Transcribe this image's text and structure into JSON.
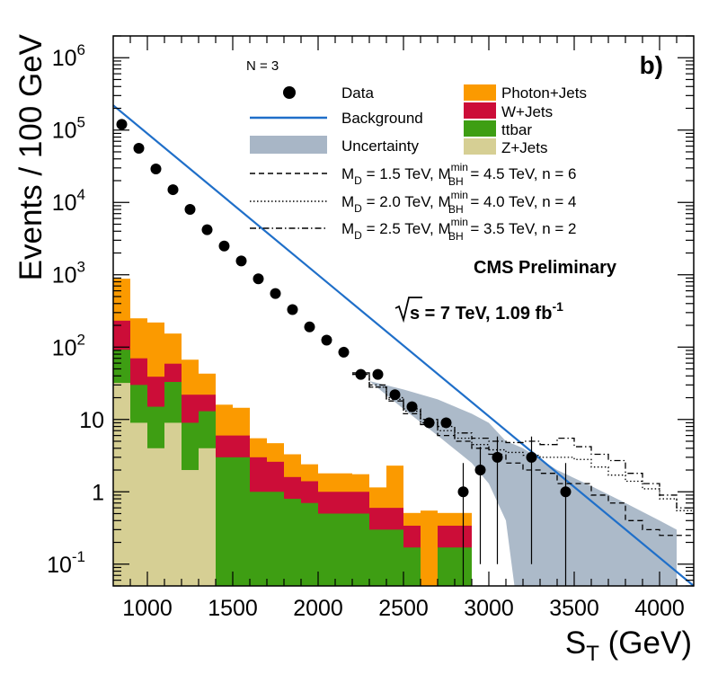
{
  "chart_data": {
    "type": "histogram",
    "title": "",
    "panel_label": "b)",
    "n_label": "N = 3",
    "xlabel": "S_T (GeV)",
    "xlabel_main": "S",
    "xlabel_sub": "T",
    "xlabel_unit": " (GeV)",
    "ylabel": "Events / 100 GeV",
    "xlim": [
      800,
      4200
    ],
    "ylim": [
      0.05,
      2000000
    ],
    "yscale": "log",
    "x_ticks": [
      1000,
      1500,
      2000,
      2500,
      3000,
      3500,
      4000
    ],
    "y_ticks": [
      {
        "value": 0.1,
        "base": "10",
        "exp": "-1"
      },
      {
        "value": 1,
        "base": "1",
        "exp": ""
      },
      {
        "value": 10,
        "base": "10",
        "exp": ""
      },
      {
        "value": 100,
        "base": "10",
        "exp": "2"
      },
      {
        "value": 1000,
        "base": "10",
        "exp": "3"
      },
      {
        "value": 10000,
        "base": "10",
        "exp": "4"
      },
      {
        "value": 100000,
        "base": "10",
        "exp": "5"
      },
      {
        "value": 1000000,
        "base": "10",
        "exp": "6"
      }
    ],
    "bin_edges": [
      800,
      900,
      1000,
      1100,
      1200,
      1300,
      1400,
      1500,
      1600,
      1700,
      1800,
      1900,
      2000,
      2100,
      2200,
      2300,
      2400,
      2500,
      2600,
      2700,
      2800,
      2900,
      3000
    ],
    "stack": [
      {
        "name": "Z+Jets",
        "color": "#d6cf94",
        "values": [
          32,
          9,
          4,
          9,
          2,
          4,
          0,
          0,
          0,
          0,
          0,
          0,
          0,
          0,
          0,
          0,
          0,
          0,
          0,
          0,
          0,
          0
        ]
      },
      {
        "name": "ttbar",
        "color": "#3e9e13",
        "values": [
          60,
          21,
          11,
          24,
          7,
          9,
          3,
          3,
          1,
          1,
          0.8,
          0.7,
          0.5,
          0.5,
          0.5,
          0.3,
          0.3,
          0.17,
          0,
          0.17,
          0.17,
          0
        ]
      },
      {
        "name": "W+Jets",
        "color": "#cc0d38",
        "values": [
          140,
          40,
          24,
          26,
          13,
          9,
          3,
          3,
          2,
          1.6,
          0.8,
          0.7,
          0.5,
          0.5,
          0.5,
          0.3,
          0.3,
          0.17,
          0,
          0.17,
          0.17,
          0
        ]
      },
      {
        "name": "Photon+Jets",
        "color": "#fb9a00",
        "values": [
          650,
          180,
          180,
          95,
          45,
          21,
          10,
          8.5,
          2.5,
          2.1,
          1.7,
          1,
          0.8,
          0.8,
          0.75,
          0.55,
          1.7,
          0.17,
          0.55,
          0.17,
          0.17,
          0
        ]
      }
    ],
    "data_points": {
      "name": "Data",
      "x": [
        850,
        950,
        1050,
        1150,
        1250,
        1350,
        1450,
        1550,
        1650,
        1750,
        1850,
        1950,
        2050,
        2150,
        2250,
        2350,
        2450,
        2550,
        2650,
        2750,
        2850,
        2950,
        3050,
        3250,
        3450
      ],
      "y": [
        120000,
        56000,
        29000,
        15000,
        8000,
        4200,
        2500,
        1550,
        880,
        550,
        330,
        190,
        125,
        85,
        42,
        42,
        22,
        15,
        9,
        9,
        1,
        2,
        3,
        3,
        1
      ],
      "y_err_low": [
        0,
        0,
        0,
        0,
        0,
        0,
        0,
        0,
        0,
        0,
        0,
        0,
        0,
        0,
        0,
        0,
        0,
        0,
        0,
        0,
        0.99,
        1.9,
        2.9,
        2.9,
        0.99
      ],
      "y_err_high": [
        0,
        0,
        0,
        0,
        0,
        0,
        0,
        0,
        0,
        0,
        0,
        0,
        0,
        0,
        0,
        0,
        0,
        0,
        0,
        0,
        1.5,
        2.2,
        2.8,
        2.8,
        1.5
      ]
    },
    "background": {
      "name": "Background",
      "color": "#1f6fc9",
      "x": [
        800,
        4200
      ],
      "y": [
        220000,
        0.05
      ]
    },
    "uncertainty": {
      "name": "Uncertainty",
      "color": "#a8b6c6",
      "x": [
        2300,
        2500,
        2700,
        2900,
        3000,
        3100,
        3150,
        3200,
        3400,
        3600,
        3800,
        4000,
        4100
      ],
      "upper": [
        34,
        26,
        19,
        12,
        9,
        5,
        4.5,
        4,
        2,
        1.2,
        0.7,
        0.4,
        0.3
      ],
      "lower": [
        34,
        14,
        6,
        2.5,
        1.3,
        0.4,
        0.05,
        0.05,
        0.05,
        0.05,
        0.05,
        0.05,
        0.05
      ]
    },
    "signals": [
      {
        "name": "M_D = 1.5 TeV, M_BH^min = 4.5 TeV, n = 6",
        "legend_parts": {
          "m": "M",
          "msub": "D",
          "val1": " = 1.5 TeV, M",
          "sup": "min",
          "sub": "BH",
          "val2": " = 4.5 TeV, n = 6"
        },
        "dash": "6,4",
        "edges": [
          2200,
          2300,
          2400,
          2500,
          2600,
          2700,
          2800,
          2900,
          3000,
          3100,
          3200,
          3300,
          3400,
          3500,
          3600,
          3700,
          3800,
          3900,
          4000,
          4100,
          4200
        ],
        "values": [
          42,
          28,
          18,
          12,
          8.5,
          6,
          5,
          4,
          3.3,
          2.5,
          2,
          1.8,
          1.3,
          1.3,
          0.9,
          0.7,
          0.4,
          0.3,
          0.25,
          0.25
        ]
      },
      {
        "name": "M_D = 2.0 TeV, M_BH^min = 4.0 TeV, n = 4",
        "legend_parts": {
          "m": "M",
          "msub": "D",
          "val1": " = 2.0 TeV, M",
          "sup": "min",
          "sub": "BH",
          "val2": " = 4.0 TeV, n = 4"
        },
        "dash": "1.5,2.5",
        "edges": [
          2200,
          2300,
          2400,
          2500,
          2600,
          2700,
          2800,
          2900,
          3000,
          3100,
          3200,
          3300,
          3400,
          3500,
          3600,
          3700,
          3800,
          3900,
          4000,
          4100,
          4200
        ],
        "values": [
          42,
          28,
          19,
          13,
          9,
          7,
          5.5,
          4.5,
          3.8,
          3.5,
          3.2,
          3,
          3,
          2.8,
          2.2,
          1.7,
          1.4,
          1.1,
          0.8,
          0.55
        ]
      },
      {
        "name": "M_D = 2.5 TeV, M_BH^min = 3.5 TeV, n = 2",
        "legend_parts": {
          "m": "M",
          "msub": "D",
          "val1": " = 2.5 TeV, M",
          "sup": "min",
          "sub": "BH",
          "val2": " = 3.5 TeV, n = 2"
        },
        "dash": "7,3,1.5,3",
        "edges": [
          2200,
          2300,
          2400,
          2500,
          2600,
          2700,
          2800,
          2900,
          3000,
          3100,
          3200,
          3300,
          3400,
          3500,
          3600,
          3700,
          3800,
          3900,
          4000,
          4100,
          4200
        ],
        "values": [
          44,
          30,
          20,
          14,
          10,
          8,
          6.5,
          5.5,
          5,
          4.8,
          5,
          4.5,
          5.5,
          4.2,
          3.3,
          2.7,
          1.8,
          1.3,
          0.9,
          0.6
        ]
      }
    ],
    "legend": {
      "data_label": "Data",
      "background_label": "Background",
      "uncertainty_label": "Uncertainty",
      "photon_label": "Photon+Jets",
      "wjets_label": "W+Jets",
      "ttbar_label": "ttbar",
      "zjets_label": "Z+Jets"
    },
    "annotations": {
      "cms": "CMS Preliminary",
      "sqrt_s": "s",
      "energy_lumi": " = 7 TeV, 1.09 fb",
      "lumi_exp": "-1"
    }
  }
}
